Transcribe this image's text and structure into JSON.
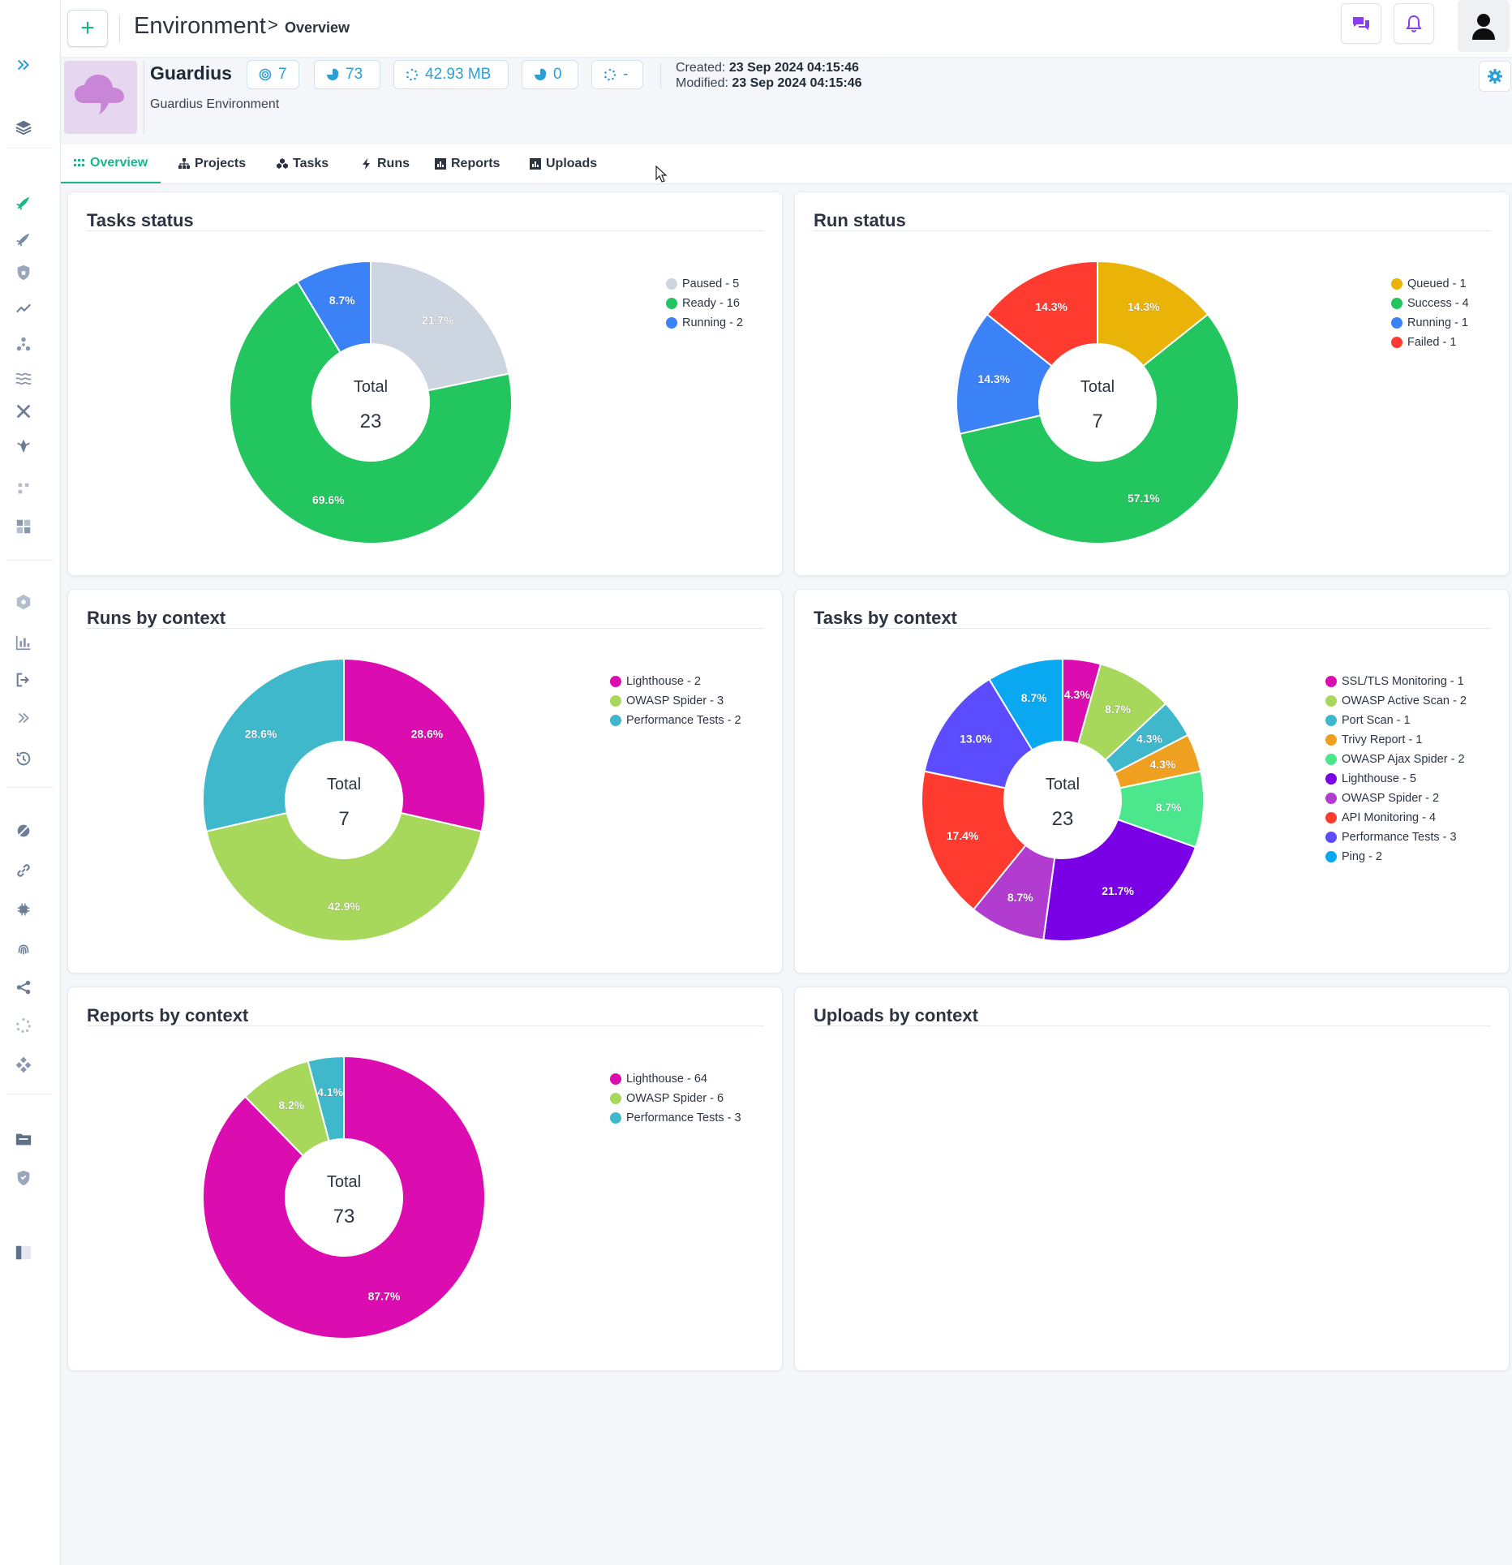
{
  "header": {
    "breadcrumb_main": "Environment",
    "breadcrumb_separator": ">",
    "breadcrumb_sub": "Overview"
  },
  "environment": {
    "name": "Guardius",
    "description": "Guardius Environment",
    "stats": {
      "projects": "7",
      "reports": "73",
      "size": "42.93 MB",
      "runs": "0",
      "uploads": "-"
    },
    "created_label": "Created:",
    "created_value": "23 Sep 2024 04:15:46",
    "modified_label": "Modified:",
    "modified_value": "23 Sep 2024 04:15:46"
  },
  "tabs": [
    {
      "label": "Overview",
      "icon": "grid-icon",
      "active": true
    },
    {
      "label": "Projects",
      "icon": "sitemap-icon",
      "active": false
    },
    {
      "label": "Tasks",
      "icon": "cubes-icon",
      "active": false
    },
    {
      "label": "Runs",
      "icon": "bolt-icon",
      "active": false
    },
    {
      "label": "Reports",
      "icon": "chart-icon",
      "active": false
    },
    {
      "label": "Uploads",
      "icon": "chart-icon",
      "active": false
    }
  ],
  "center_label": "Total",
  "cards": {
    "tasks_status": "Tasks status",
    "run_status": "Run status",
    "runs_by_context": "Runs by context",
    "tasks_by_context": "Tasks by context",
    "reports_by_context": "Reports by context",
    "uploads_by_context": "Uploads by context"
  },
  "chart_data": [
    {
      "id": "tasks_status",
      "type": "pie",
      "title": "Tasks status",
      "total": 23,
      "categories": [
        "Paused",
        "Ready",
        "Running"
      ],
      "values": [
        5,
        16,
        2
      ],
      "slice_labels": [
        "21.7%",
        "69.6%",
        "8.7%"
      ],
      "colors": [
        "#cdd5e1",
        "#22c55e",
        "#3b82f6"
      ],
      "legend_placement": "top-right"
    },
    {
      "id": "run_status",
      "type": "pie",
      "title": "Run status",
      "total": 7,
      "categories": [
        "Queued",
        "Success",
        "Running",
        "Failed"
      ],
      "values": [
        1,
        4,
        1,
        1
      ],
      "slice_labels": [
        "14.3%",
        "57.1%",
        "14.3%",
        "14.3%"
      ],
      "colors": [
        "#eab308",
        "#22c55e",
        "#3b82f6",
        "#ff3b30"
      ],
      "legend_placement": "top-right"
    },
    {
      "id": "runs_by_context",
      "type": "pie",
      "title": "Runs by context",
      "total": 7,
      "categories": [
        "Lighthouse",
        "OWASP Spider",
        "Performance Tests"
      ],
      "values": [
        2,
        3,
        2
      ],
      "slice_labels": [
        "28.6%",
        "42.9%",
        "28.6%"
      ],
      "colors": [
        "#db0cb0",
        "#a7d85b",
        "#40b8cc"
      ],
      "legend_placement": "top-right"
    },
    {
      "id": "tasks_by_context",
      "type": "pie",
      "title": "Tasks by context",
      "total": 23,
      "categories": [
        "SSL/TLS Monitoring",
        "OWASP Active Scan",
        "Port Scan",
        "Trivy Report",
        "OWASP Ajax Spider",
        "Lighthouse",
        "OWASP Spider",
        "API Monitoring",
        "Performance Tests",
        "Ping"
      ],
      "values": [
        1,
        2,
        1,
        1,
        2,
        5,
        2,
        4,
        3,
        2
      ],
      "slice_labels": [
        "4.3%",
        "8.7%",
        "4.3%",
        "4.3%",
        "8.7%",
        "21.7%",
        "8.7%",
        "17.4%",
        "13.0%",
        "8.7%"
      ],
      "colors": [
        "#db0cb0",
        "#a7d85b",
        "#40b8cc",
        "#f0a020",
        "#4ce68c",
        "#7a00e6",
        "#b23ccf",
        "#ff3b30",
        "#5b4cff",
        "#0aa8f0"
      ],
      "legend_placement": "top-right"
    },
    {
      "id": "reports_by_context",
      "type": "pie",
      "title": "Reports by context",
      "total": 73,
      "categories": [
        "Lighthouse",
        "OWASP Spider",
        "Performance Tests"
      ],
      "values": [
        64,
        6,
        3
      ],
      "slice_labels": [
        "87.7%",
        "8.2%",
        "4.1%"
      ],
      "colors": [
        "#db0cb0",
        "#a7d85b",
        "#40b8cc"
      ],
      "legend_placement": "top-right"
    }
  ]
}
